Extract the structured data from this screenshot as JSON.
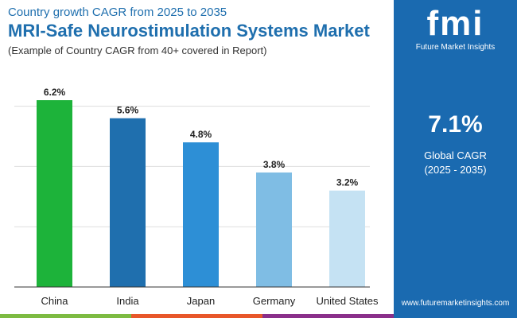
{
  "header": {
    "subtitle_top": "Country growth CAGR from 2025 to 2035",
    "title": "MRI-Safe Neurostimulation Systems Market",
    "note": "(Example of Country CAGR from 40+ covered in Report)"
  },
  "panel": {
    "logo_text": "fmi",
    "brand": "Future Market Insights",
    "cagr_value": "7.1%",
    "cagr_label": "Global CAGR",
    "cagr_period": "(2025 - 2035)",
    "url": "www.futuremarketinsights.com",
    "bg_color": "#1a6ab0"
  },
  "chart_data": {
    "type": "bar",
    "categories": [
      "China",
      "India",
      "Japan",
      "Germany",
      "United States"
    ],
    "values": [
      6.2,
      5.6,
      4.8,
      3.8,
      3.2
    ],
    "labels": [
      "6.2%",
      "5.6%",
      "4.8%",
      "3.8%",
      "3.2%"
    ],
    "colors": [
      "#1db33a",
      "#1f6fae",
      "#2d8fd6",
      "#7fbde4",
      "#c5e2f3"
    ],
    "ylim": [
      0,
      6.2
    ],
    "grid": true,
    "gridlines": [
      2,
      4,
      6
    ],
    "xlabel": "",
    "ylabel": ""
  },
  "bottom_stripe_colors": [
    "#7dbb42",
    "#e8572a",
    "#8a2f8a"
  ]
}
